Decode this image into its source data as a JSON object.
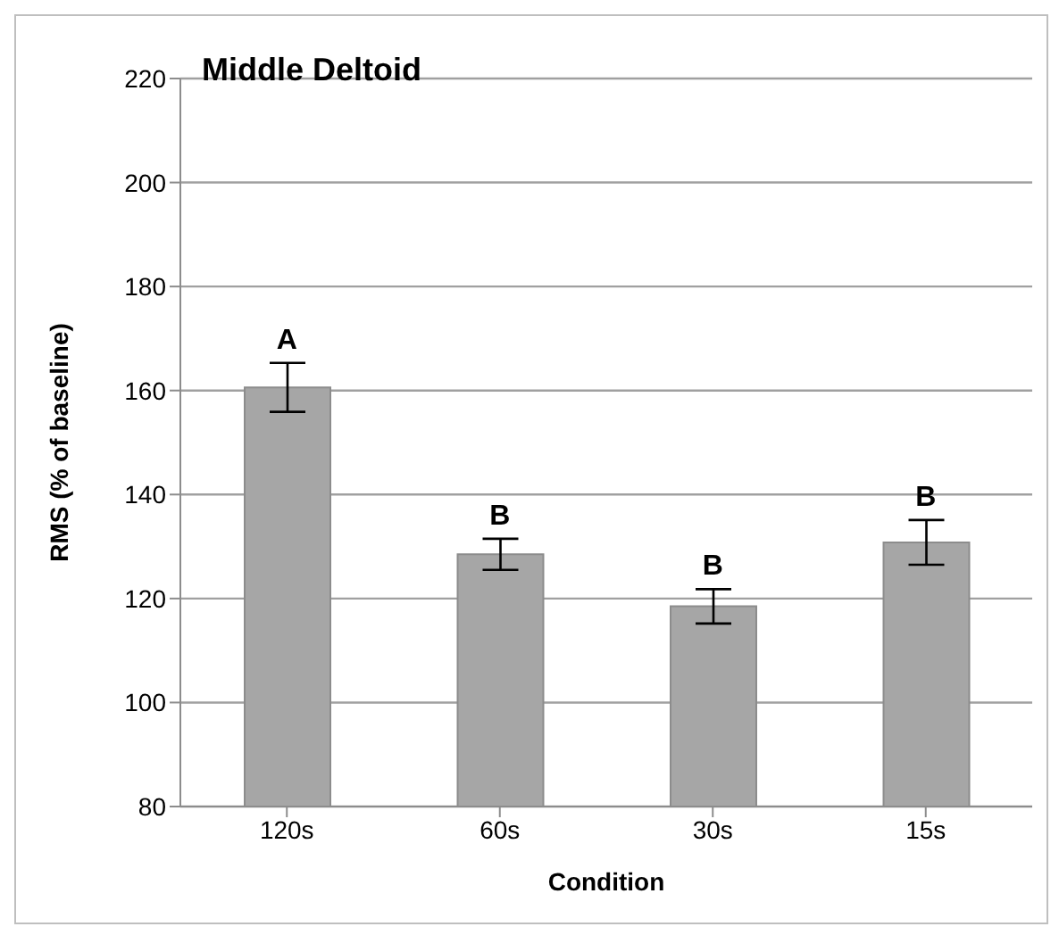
{
  "chart_data": {
    "type": "bar",
    "title": "Middle Deltoid",
    "xlabel": "Condition",
    "ylabel": "RMS (% of baseline)",
    "categories": [
      "120s",
      "60s",
      "30s",
      "15s"
    ],
    "values": [
      160.6,
      128.5,
      118.5,
      130.8
    ],
    "errors": [
      4.7,
      3,
      3.3,
      4.3
    ],
    "color": "#a6a6a6",
    "ylim": [
      80,
      220
    ],
    "yticks": [
      80,
      100,
      120,
      140,
      160,
      180,
      200,
      220
    ],
    "grid": "y",
    "annotations": [
      {
        "text": "A",
        "x": "120s",
        "y": 165.3
      },
      {
        "text": "B",
        "x": "60s",
        "y": 131.5
      },
      {
        "text": "B",
        "x": "30s",
        "y": 121.8
      },
      {
        "text": "B",
        "x": "15s",
        "y": 135.1
      }
    ]
  }
}
